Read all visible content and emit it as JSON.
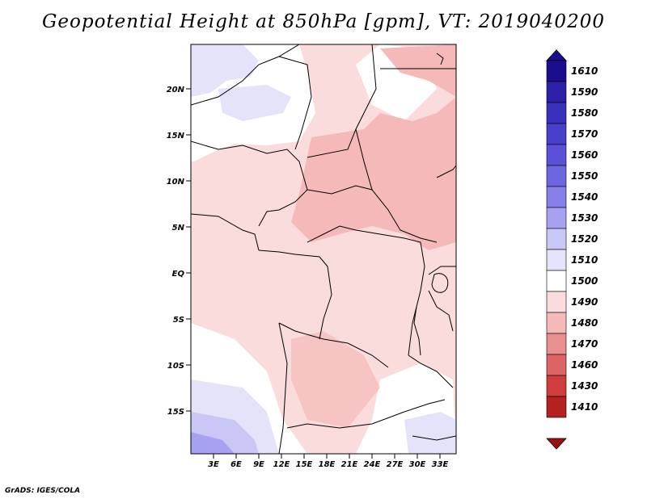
{
  "title": "Geopotential Height at 850hPa [gpm], VT: 2019040200",
  "footer": "GrADS: IGES/COLA",
  "map": {
    "lat_ticks": [
      "20N",
      "15N",
      "10N",
      "5N",
      "EQ",
      "5S",
      "10S",
      "15S"
    ],
    "lon_ticks": [
      "3E",
      "6E",
      "9E",
      "12E",
      "15E",
      "18E",
      "21E",
      "24E",
      "27E",
      "30E",
      "33E"
    ]
  },
  "colorbar": {
    "levels": [
      "1610",
      "1590",
      "1580",
      "1570",
      "1560",
      "1550",
      "1540",
      "1530",
      "1520",
      "1510",
      "1500",
      "1490",
      "1480",
      "1470",
      "1460",
      "1430",
      "1410"
    ],
    "colors": [
      "#1c0d8f",
      "#2d20a8",
      "#3b2fbd",
      "#4a3fcc",
      "#5a51d6",
      "#6c66e0",
      "#8780e8",
      "#a6a2ef",
      "#c9c7f5",
      "#e4e3f9",
      "#ffffff",
      "#fbdcdc",
      "#f5b9b9",
      "#e88f8f",
      "#dc6464",
      "#cf3d3d",
      "#b52020",
      "#991010"
    ]
  },
  "colors": {
    "neutral": "#ffffff",
    "pink_light": "#fbdcdc",
    "pink_mid": "#f5b9b9",
    "blue_light": "#e4e3f9",
    "blue_mid": "#c9c7f5",
    "blue_dark": "#a6a2ef"
  }
}
